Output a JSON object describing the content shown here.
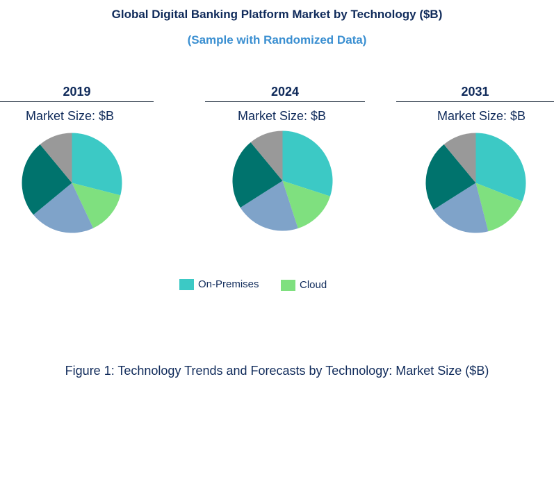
{
  "header": {
    "title": "Global Digital Banking Platform Market by Technology ($B)",
    "subtitle": "(Sample with Randomized Data)"
  },
  "chart_data": [
    {
      "type": "pie",
      "title": "2019",
      "subtitle": "Market Size: $B",
      "slices": [
        {
          "name": "On-Premises",
          "value": 29,
          "color": "#3cc9c5"
        },
        {
          "name": "Cloud",
          "value": 14,
          "color": "#7fe07f"
        },
        {
          "name": "",
          "value": 21,
          "color": "#7fa3c9"
        },
        {
          "name": "",
          "value": 25,
          "color": "#00736d"
        },
        {
          "name": "",
          "value": 11,
          "color": "#999999"
        }
      ]
    },
    {
      "type": "pie",
      "title": "2024",
      "subtitle": "Market Size: $B",
      "slices": [
        {
          "name": "On-Premises",
          "value": 30,
          "color": "#3cc9c5"
        },
        {
          "name": "Cloud",
          "value": 15,
          "color": "#7fe07f"
        },
        {
          "name": "",
          "value": 21,
          "color": "#7fa3c9"
        },
        {
          "name": "",
          "value": 23,
          "color": "#00736d"
        },
        {
          "name": "",
          "value": 11,
          "color": "#999999"
        }
      ]
    },
    {
      "type": "pie",
      "title": "2031",
      "subtitle": "Market Size: $B",
      "slices": [
        {
          "name": "On-Premises",
          "value": 31,
          "color": "#3cc9c5"
        },
        {
          "name": "Cloud",
          "value": 15,
          "color": "#7fe07f"
        },
        {
          "name": "",
          "value": 20,
          "color": "#7fa3c9"
        },
        {
          "name": "",
          "value": 23,
          "color": "#00736d"
        },
        {
          "name": "",
          "value": 11,
          "color": "#999999"
        }
      ]
    }
  ],
  "legend": {
    "items": [
      {
        "label": "On-Premises",
        "color": "#3cc9c5"
      },
      {
        "label": "Cloud",
        "color": "#7fe07f"
      }
    ]
  },
  "caption": "Figure 1: Technology Trends and Forecasts by Technology: Market Size ($B)"
}
